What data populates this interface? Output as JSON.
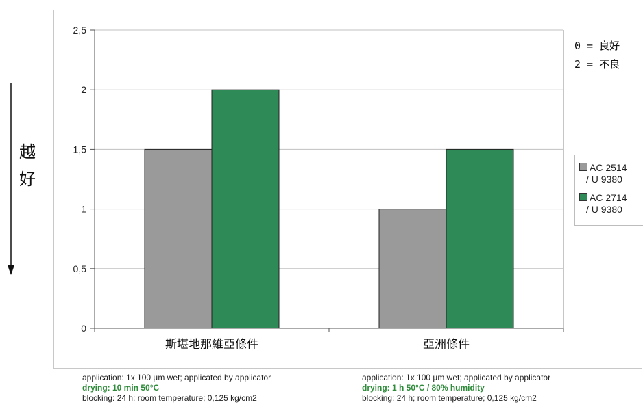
{
  "chart_data": {
    "type": "bar",
    "categories": [
      "斯堪地那維亞條件",
      "亞洲條件"
    ],
    "series": [
      {
        "name": "AC 2514 / U 9380",
        "name_line1": "AC 2514",
        "name_line2": "/ U 9380",
        "values": [
          1.5,
          1.0
        ]
      },
      {
        "name": "AC 2714 / U 9380",
        "name_line1": "AC 2714",
        "name_line2": "/ U 9380",
        "values": [
          2.0,
          1.5
        ]
      }
    ],
    "ylim": [
      0,
      2.5
    ],
    "yticks": [
      "0",
      "0,5",
      "1",
      "1,5",
      "2",
      "2,5"
    ],
    "ylabel": "越好",
    "grid": true,
    "legend_position": "right",
    "annotation": [
      "0 = 良好",
      "2 = 不良"
    ]
  },
  "colors": {
    "series_1": "#9a9a9a",
    "series_2": "#2e8b57",
    "grid": "#c0c0c0",
    "drying_text": "#2e8b3a"
  },
  "notes": [
    {
      "application": "application: 1x 100 µm wet; applicated by applicator",
      "drying": "drying: 10 min 50°C",
      "blocking": "blocking: 24 h; room temperature; 0,125 kg/cm2"
    },
    {
      "application": "application: 1x 100 µm wet; applicated by applicator",
      "drying": "drying: 1 h 50°C / 80% humidity",
      "blocking": "blocking: 24 h; room temperature; 0,125 kg/cm2"
    }
  ],
  "side_label_chars": [
    "越",
    "好"
  ],
  "side_arrow_icon": "down-arrow-icon"
}
